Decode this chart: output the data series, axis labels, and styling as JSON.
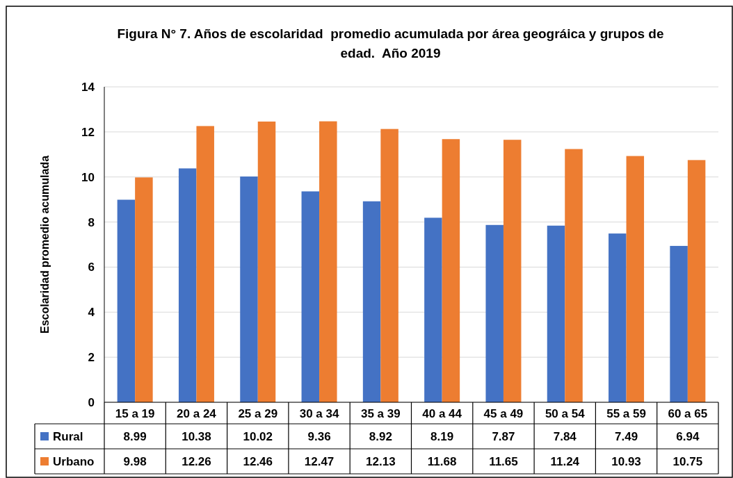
{
  "chart_data": {
    "type": "bar",
    "title": "Figura N° 7. Años de escolaridad  promedio acumulada por área geográica y grupos de edad.  Año 2019",
    "ylabel": "Escolaridad promedio acumulada",
    "categories": [
      "15 a 19",
      "20 a 24",
      "25 a 29",
      "30 a 34",
      "35 a 39",
      "40 a 44",
      "45 a 49",
      "50 a 54",
      "55 a 59",
      "60 a 65"
    ],
    "series": [
      {
        "name": "Rural",
        "color": "#4472c4",
        "values": [
          8.99,
          10.38,
          10.02,
          9.36,
          8.92,
          8.19,
          7.87,
          7.84,
          7.49,
          6.94
        ]
      },
      {
        "name": "Urbano",
        "color": "#ed7d31",
        "values": [
          9.98,
          12.26,
          12.46,
          12.47,
          12.13,
          11.68,
          11.65,
          11.24,
          10.93,
          10.75
        ]
      }
    ],
    "ylim": [
      0,
      14
    ],
    "yticks": [
      0,
      2,
      4,
      6,
      8,
      10,
      12,
      14
    ],
    "grid": "y",
    "legend": "bottom",
    "data_labels": true
  }
}
